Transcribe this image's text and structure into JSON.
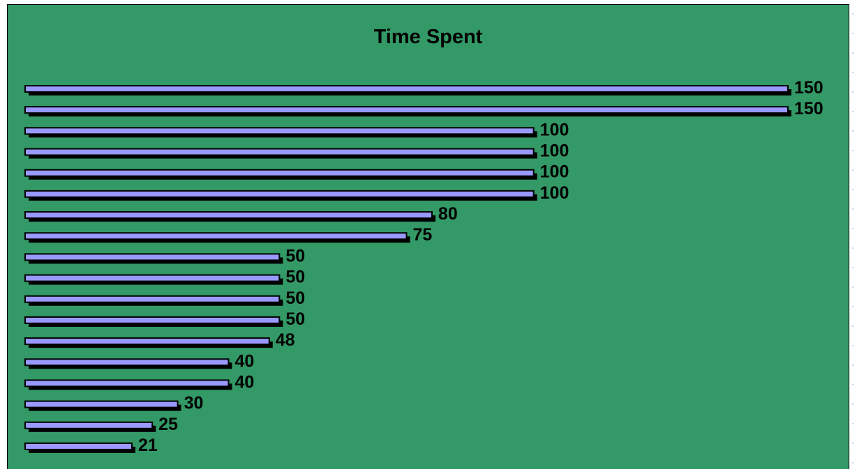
{
  "chart_data": {
    "type": "bar",
    "orientation": "horizontal",
    "title": "Time Spent",
    "xlabel": "",
    "ylabel": "",
    "xlim": [
      0,
      150
    ],
    "grid": false,
    "legend": "none",
    "series": [
      {
        "values": [
          150,
          150,
          100,
          100,
          100,
          100,
          80,
          75,
          50,
          50,
          50,
          50,
          48,
          40,
          40,
          30,
          25,
          21
        ]
      }
    ],
    "data_labels": [
      "150",
      "150",
      "100",
      "100",
      "100",
      "100",
      "80",
      "75",
      "50",
      "50",
      "50",
      "50",
      "48",
      "40",
      "40",
      "30",
      "25",
      "21"
    ],
    "colors": {
      "background": "#339966",
      "bar_fill": "#9999ff",
      "bar_shadow": "#000000"
    }
  }
}
